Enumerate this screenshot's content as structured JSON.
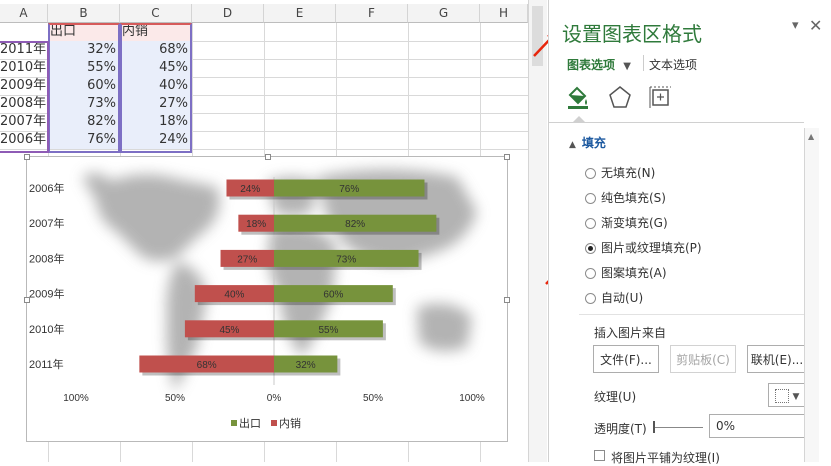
{
  "sheet": {
    "columns": [
      "A",
      "B",
      "C",
      "D",
      "E",
      "F",
      "G",
      "H"
    ],
    "header_row": {
      "b": "出口",
      "c": "内销"
    },
    "rows": [
      {
        "year": "2011年",
        "export": "32%",
        "domestic": "68%"
      },
      {
        "year": "2010年",
        "export": "55%",
        "domestic": "45%"
      },
      {
        "year": "2009年",
        "export": "60%",
        "domestic": "40%"
      },
      {
        "year": "2008年",
        "export": "73%",
        "domestic": "27%"
      },
      {
        "year": "2007年",
        "export": "82%",
        "domestic": "18%"
      },
      {
        "year": "2006年",
        "export": "76%",
        "domestic": "24%"
      }
    ]
  },
  "chart_data": {
    "type": "bar",
    "orientation": "horizontal",
    "categories": [
      "2006年",
      "2007年",
      "2008年",
      "2009年",
      "2010年",
      "2011年"
    ],
    "series": [
      {
        "name": "出口",
        "values": [
          76,
          82,
          73,
          60,
          55,
          32
        ],
        "color": "#77933c",
        "direction": "right"
      },
      {
        "name": "内销",
        "values": [
          24,
          18,
          27,
          40,
          45,
          68
        ],
        "color": "#c0504d",
        "direction": "left"
      }
    ],
    "data_labels": {
      "出口": [
        "76%",
        "82%",
        "73%",
        "60%",
        "55%",
        "32%"
      ],
      "内销": [
        "24%",
        "18%",
        "27%",
        "40%",
        "45%",
        "68%"
      ]
    },
    "x_ticks": [
      "100%",
      "50%",
      "0%",
      "50%",
      "100%"
    ],
    "xlim": [
      -100,
      100
    ],
    "legend": "bottom",
    "background": "world-map-picture"
  },
  "pane": {
    "title": "设置图表区格式",
    "tabs": {
      "chart_options": "图表选项",
      "text_options": "文本选项"
    },
    "section": "填充",
    "fill_options": [
      {
        "label": "无填充(N)",
        "checked": false
      },
      {
        "label": "纯色填充(S)",
        "checked": false
      },
      {
        "label": "渐变填充(G)",
        "checked": false
      },
      {
        "label": "图片或纹理填充(P)",
        "checked": true
      },
      {
        "label": "图案填充(A)",
        "checked": false
      },
      {
        "label": "自动(U)",
        "checked": false
      }
    ],
    "insert_from": "插入图片来自",
    "buttons": {
      "file": "文件(F)...",
      "clipboard": "剪贴板(C)",
      "online": "联机(E)..."
    },
    "texture_label": "纹理(U)",
    "transparency_label": "透明度(T)",
    "transparency_value": "0%",
    "tile_label": "将图片平铺为纹理(I)",
    "icons": [
      "fill-line-icon",
      "effects-icon",
      "size-properties-icon"
    ],
    "accent": "#2f7a3b",
    "arrow_color": "#e8260c"
  }
}
